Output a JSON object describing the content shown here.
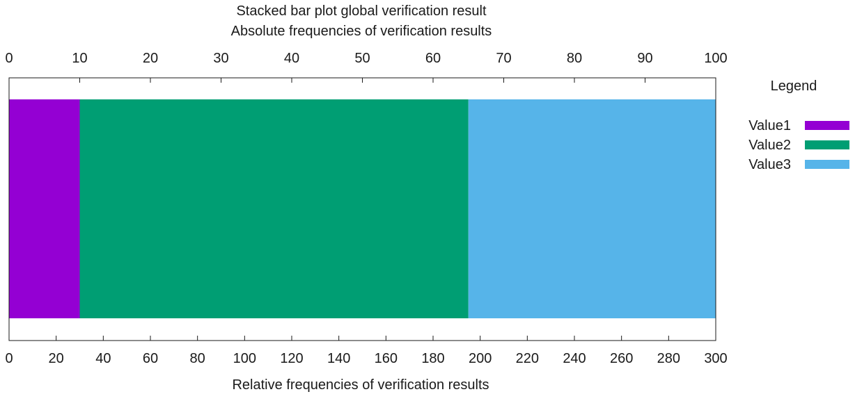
{
  "chart_data": {
    "type": "bar",
    "orientation": "horizontal-stacked",
    "title": "Stacked bar plot global verification result",
    "subtitle": "Absolute frequencies of verification results",
    "xlabel": "Relative frequencies of verification results",
    "top_axis": {
      "range": [
        0,
        100
      ],
      "ticks": [
        0,
        10,
        20,
        30,
        40,
        50,
        60,
        70,
        80,
        90,
        100
      ]
    },
    "bottom_axis": {
      "range": [
        0,
        300
      ],
      "ticks": [
        0,
        20,
        40,
        60,
        80,
        100,
        120,
        140,
        160,
        180,
        200,
        220,
        240,
        260,
        280,
        300
      ]
    },
    "series": [
      {
        "name": "Value1",
        "value": 30,
        "color": "#9400d3"
      },
      {
        "name": "Value2",
        "value": 165,
        "color": "#009e73"
      },
      {
        "name": "Value3",
        "value": 105,
        "color": "#56b4e9"
      }
    ],
    "legend": {
      "title": "Legend",
      "position": "right"
    },
    "grid": false
  }
}
